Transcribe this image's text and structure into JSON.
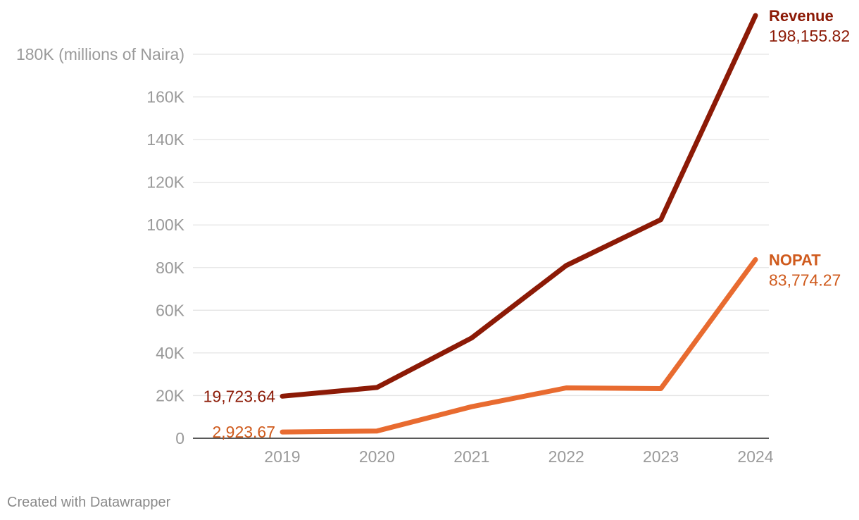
{
  "chart_data": {
    "type": "line",
    "x": [
      "2019",
      "2020",
      "2021",
      "2022",
      "2023",
      "2024"
    ],
    "unit_label": "(millions of Naira)",
    "ylim": [
      0,
      180000
    ],
    "yticks": [
      0,
      20000,
      40000,
      60000,
      80000,
      100000,
      120000,
      140000,
      160000,
      180000
    ],
    "ytick_labels": [
      "0",
      "20K",
      "40K",
      "60K",
      "80K",
      "100K",
      "120K",
      "140K",
      "160K",
      "180K"
    ],
    "grid": true,
    "series": [
      {
        "name": "Revenue",
        "color": "#8c1a06",
        "values": [
          19723.64,
          23800,
          47000,
          81000,
          102500,
          198155.82
        ],
        "start_label": "19,723.64",
        "end_label": "198,155.82"
      },
      {
        "name": "NOPAT",
        "color": "#e86b30",
        "values": [
          2923.67,
          3400,
          14800,
          23600,
          23300,
          83774.27
        ],
        "start_label": "2,923.67",
        "end_label": "83,774.27"
      }
    ]
  },
  "footer": {
    "credit": "Created with Datawrapper"
  },
  "colors": {
    "nopat_text": "#cf5a1c",
    "grid": "#e4e4e4",
    "axis": "#222222",
    "tick_text": "#9a9a9a"
  }
}
